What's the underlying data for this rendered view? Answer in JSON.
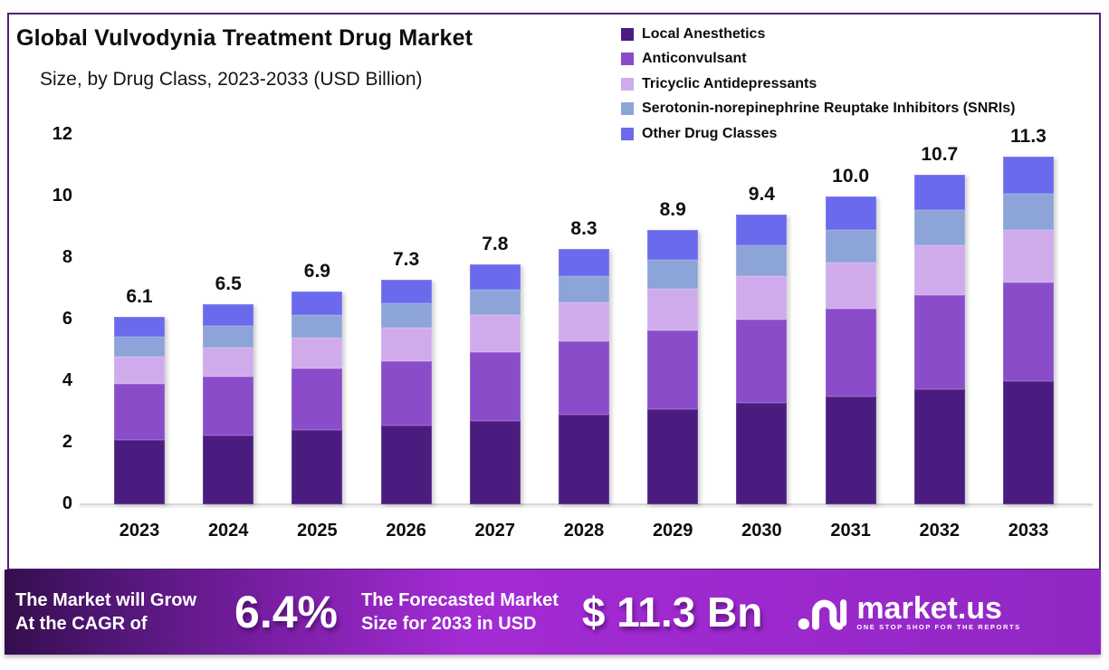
{
  "title": "Global Vulvodynia Treatment Drug Market",
  "subtitle": "Size, by Drug Class, 2023-2033 (USD Billion)",
  "colors": {
    "frame_border": "#4e2374",
    "baseline": "#d6d6d6",
    "banner_gradient": [
      "#340e4b",
      "#7b1fa6",
      "#a32bd4",
      "#9127c3"
    ],
    "text": "#0d0d0d"
  },
  "chart_data": {
    "type": "bar",
    "stacked": true,
    "title": "Global Vulvodynia Treatment Drug Market Size, by Drug Class, 2023-2033 (USD Billion)",
    "categories": [
      "2023",
      "2024",
      "2025",
      "2026",
      "2027",
      "2028",
      "2029",
      "2030",
      "2031",
      "2032",
      "2033"
    ],
    "series": [
      {
        "name": "Local Anesthetics",
        "color": "#4b1c80",
        "values": [
          2.1,
          2.25,
          2.4,
          2.55,
          2.7,
          2.9,
          3.1,
          3.3,
          3.5,
          3.75,
          4.0
        ]
      },
      {
        "name": "Anticonvulsant",
        "color": "#8a4cc9",
        "values": [
          1.8,
          1.9,
          2.0,
          2.1,
          2.25,
          2.4,
          2.55,
          2.7,
          2.85,
          3.05,
          3.2
        ]
      },
      {
        "name": "Tricyclic Antidepressants",
        "color": "#cfabec",
        "values": [
          0.9,
          0.95,
          1.0,
          1.1,
          1.2,
          1.25,
          1.35,
          1.4,
          1.5,
          1.6,
          1.7
        ]
      },
      {
        "name": "Serotonin-norepinephrine Reuptake Inhibitors (SNRIs)",
        "color": "#8ca4d8",
        "values": [
          0.65,
          0.7,
          0.75,
          0.77,
          0.82,
          0.87,
          0.94,
          1.0,
          1.07,
          1.15,
          1.2
        ]
      },
      {
        "name": "Other Drug Classes",
        "color": "#6b6aec",
        "values": [
          0.65,
          0.7,
          0.75,
          0.78,
          0.83,
          0.88,
          0.96,
          1.0,
          1.08,
          1.15,
          1.2
        ]
      }
    ],
    "totals": [
      6.1,
      6.5,
      6.9,
      7.3,
      7.8,
      8.3,
      8.9,
      9.4,
      10.0,
      10.7,
      11.3
    ],
    "total_labels": [
      "6.1",
      "6.5",
      "6.9",
      "7.3",
      "7.8",
      "8.3",
      "8.9",
      "9.4",
      "10.0",
      "10.7",
      "11.3"
    ],
    "xlabel": "",
    "ylabel": "",
    "ylim": [
      0,
      12
    ],
    "yticks": [
      0,
      2,
      4,
      6,
      8,
      10,
      12
    ],
    "grid": false,
    "legend_position": "top-right"
  },
  "banner": {
    "cagr_label_line1": "The Market will Grow",
    "cagr_label_line2": "At the CAGR of",
    "cagr_value": "6.4%",
    "forecast_label_line1": "The Forecasted Market",
    "forecast_label_line2": "Size for 2033 in USD",
    "forecast_value": "$ 11.3 Bn",
    "brand_name": "market.us",
    "brand_tagline": "ONE STOP SHOP FOR THE REPORTS"
  }
}
